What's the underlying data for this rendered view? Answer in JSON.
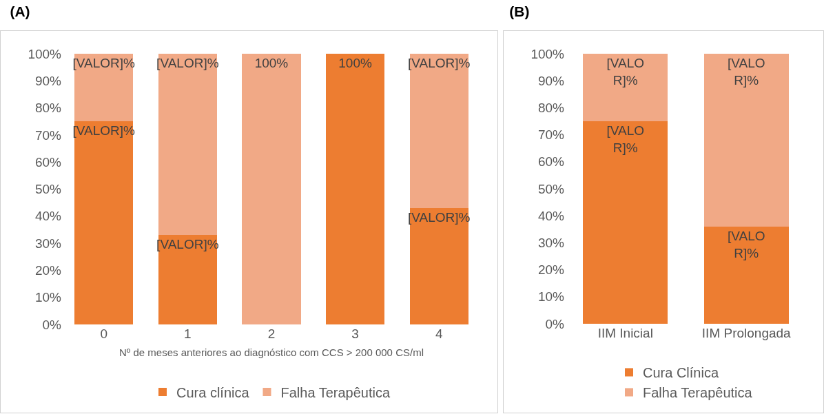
{
  "chart_data": [
    {
      "type": "bar",
      "title": "(A)",
      "xlabel": "Nº de meses anteriores ao diagnóstico com CCS > 200 000 CS/ml",
      "categories": [
        "0",
        "1",
        "2",
        "3",
        "4"
      ],
      "stacked": true,
      "ylim": [
        0,
        100
      ],
      "yticks": [
        {
          "value": 0,
          "label": "0%"
        },
        {
          "value": 10,
          "label": "10%"
        },
        {
          "value": 20,
          "label": "20%"
        },
        {
          "value": 30,
          "label": "30%"
        },
        {
          "value": 40,
          "label": "40%"
        },
        {
          "value": 50,
          "label": "50%"
        },
        {
          "value": 60,
          "label": "60%"
        },
        {
          "value": 70,
          "label": "70%"
        },
        {
          "value": 80,
          "label": "80%"
        },
        {
          "value": 90,
          "label": "90%"
        },
        {
          "value": 100,
          "label": "100%"
        }
      ],
      "grid": false,
      "legend": "bottom",
      "series": [
        {
          "name": "Cura clínica",
          "color": "#ed7d31",
          "values": [
            75,
            33,
            0,
            100,
            43
          ],
          "value_labels": [
            "[VALOR]%",
            "[VALOR]%",
            null,
            "100%",
            "[VALOR]%"
          ]
        },
        {
          "name": "Falha Terapêutica",
          "color": "#f1a986",
          "values": [
            25,
            67,
            100,
            0,
            57
          ],
          "value_labels": [
            "[VALOR]%",
            "[VALOR]%",
            "100%",
            null,
            "[VALOR]%"
          ]
        }
      ]
    },
    {
      "type": "bar",
      "title": "(B)",
      "categories": [
        "IIM Inicial",
        "IIM Prolongada"
      ],
      "stacked": true,
      "ylim": [
        0,
        100
      ],
      "yticks": [
        {
          "value": 0,
          "label": "0%"
        },
        {
          "value": 10,
          "label": "10%"
        },
        {
          "value": 20,
          "label": "20%"
        },
        {
          "value": 30,
          "label": "30%"
        },
        {
          "value": 40,
          "label": "40%"
        },
        {
          "value": 50,
          "label": "50%"
        },
        {
          "value": 60,
          "label": "60%"
        },
        {
          "value": 70,
          "label": "70%"
        },
        {
          "value": 80,
          "label": "80%"
        },
        {
          "value": 90,
          "label": "90%"
        },
        {
          "value": 100,
          "label": "100%"
        }
      ],
      "grid": false,
      "legend": "bottom",
      "series": [
        {
          "name": "Cura Clínica",
          "color": "#ed7d31",
          "values": [
            75,
            36
          ],
          "value_labels": [
            "[VALO\nR]%",
            "[VALO\nR]%"
          ]
        },
        {
          "name": "Falha Terapêutica",
          "color": "#f1a986",
          "values": [
            25,
            64
          ],
          "value_labels": [
            "[VALO\nR]%",
            "[VALO\nR]%"
          ]
        }
      ]
    }
  ]
}
